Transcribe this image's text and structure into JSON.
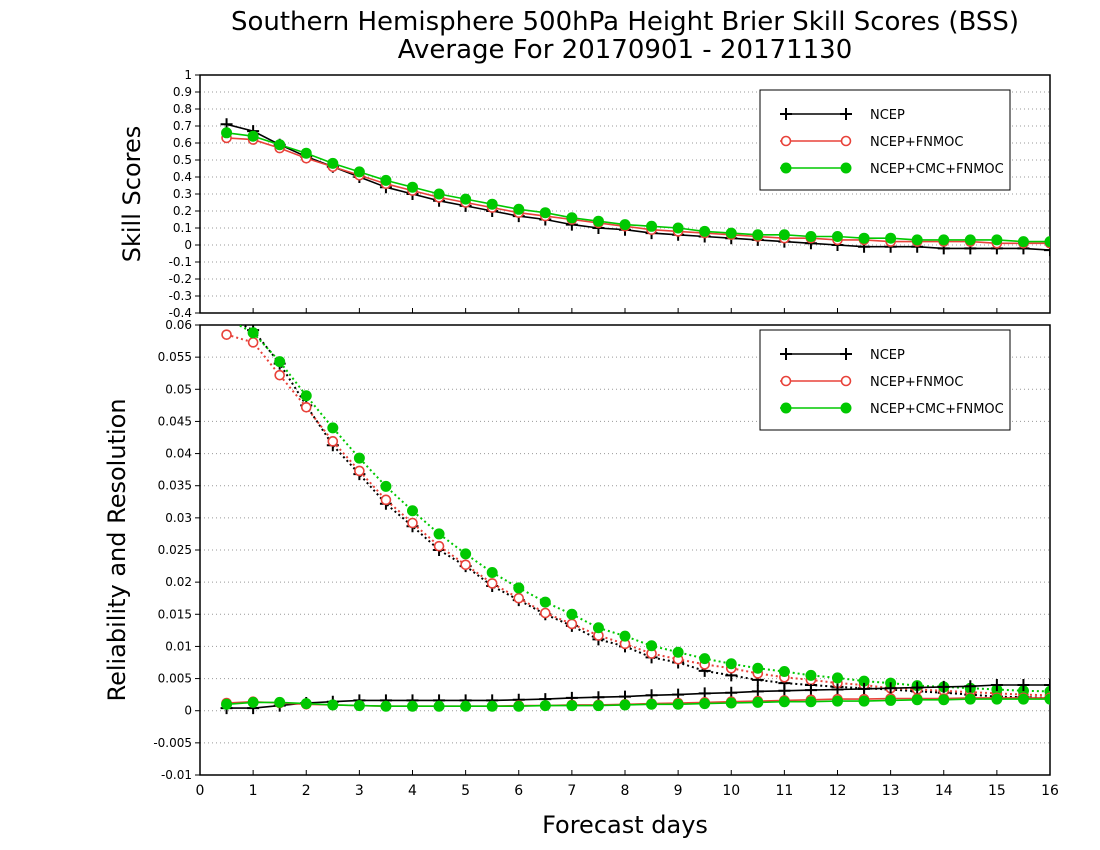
{
  "title_line1": "Southern Hemisphere 500hPa Height Brier Skill Scores (BSS)",
  "title_line2": "Average For 20170901 - 20171130",
  "xlabel": "Forecast days",
  "colors": {
    "NCEP": "#000000",
    "NCEP+FNMOC": "#e8423a",
    "NCEP+CMC+FNMOC": "#00c800"
  },
  "chart_data": [
    {
      "type": "line",
      "ylabel": "Skill Scores",
      "xlim": [
        0,
        16
      ],
      "ylim": [
        -0.4,
        1
      ],
      "xticks": [
        0,
        1,
        2,
        3,
        4,
        5,
        6,
        7,
        8,
        9,
        10,
        11,
        12,
        13,
        14,
        15,
        16
      ],
      "yticks": [
        "-0.4",
        "-0.3",
        "-0.2",
        "-0.1",
        "0",
        "0.1",
        "0.2",
        "0.3",
        "0.4",
        "0.5",
        "0.6",
        "0.7",
        "0.8",
        "0.9",
        "1"
      ],
      "grid": true,
      "legend_position": "top-right",
      "legend": [
        "NCEP",
        "NCEP+FNMOC",
        "NCEP+CMC+FNMOC"
      ],
      "x": [
        0.5,
        1,
        1.5,
        2,
        2.5,
        3,
        3.5,
        4,
        4.5,
        5,
        5.5,
        6,
        6.5,
        7,
        7.5,
        8,
        8.5,
        9,
        9.5,
        10,
        10.5,
        11,
        11.5,
        12,
        12.5,
        13,
        13.5,
        14,
        14.5,
        15,
        15.5,
        16
      ],
      "series": [
        {
          "name": "NCEP",
          "style": "solid",
          "marker": "plus",
          "values": [
            0.71,
            0.67,
            0.59,
            0.52,
            0.46,
            0.4,
            0.34,
            0.3,
            0.26,
            0.23,
            0.2,
            0.17,
            0.15,
            0.12,
            0.1,
            0.09,
            0.07,
            0.06,
            0.05,
            0.04,
            0.03,
            0.02,
            0.01,
            0.0,
            -0.01,
            -0.01,
            -0.01,
            -0.02,
            -0.02,
            -0.02,
            -0.02,
            -0.03
          ]
        },
        {
          "name": "NCEP+FNMOC",
          "style": "solid",
          "marker": "open-circle",
          "values": [
            0.63,
            0.62,
            0.57,
            0.51,
            0.46,
            0.41,
            0.36,
            0.32,
            0.28,
            0.25,
            0.22,
            0.19,
            0.17,
            0.15,
            0.13,
            0.11,
            0.09,
            0.08,
            0.07,
            0.06,
            0.05,
            0.04,
            0.04,
            0.03,
            0.03,
            0.02,
            0.02,
            0.02,
            0.02,
            0.01,
            0.01,
            0.01
          ]
        },
        {
          "name": "NCEP+CMC+FNMOC",
          "style": "solid",
          "marker": "filled-circle",
          "values": [
            0.66,
            0.64,
            0.59,
            0.54,
            0.48,
            0.43,
            0.38,
            0.34,
            0.3,
            0.27,
            0.24,
            0.21,
            0.19,
            0.16,
            0.14,
            0.12,
            0.11,
            0.1,
            0.08,
            0.07,
            0.06,
            0.06,
            0.05,
            0.05,
            0.04,
            0.04,
            0.03,
            0.03,
            0.03,
            0.03,
            0.02,
            0.02
          ]
        }
      ]
    },
    {
      "type": "line",
      "ylabel": "Reliability and Resolution",
      "xlim": [
        0,
        16
      ],
      "ylim": [
        -0.01,
        0.06
      ],
      "xticks": [
        0,
        1,
        2,
        3,
        4,
        5,
        6,
        7,
        8,
        9,
        10,
        11,
        12,
        13,
        14,
        15,
        16
      ],
      "yticks": [
        "-0.01",
        "-0.005",
        "0",
        "0.005",
        "0.01",
        "0.015",
        "0.02",
        "0.025",
        "0.03",
        "0.035",
        "0.04",
        "0.045",
        "0.05",
        "0.055",
        "0.06"
      ],
      "grid": true,
      "legend_position": "top-right",
      "legend": [
        "NCEP",
        "NCEP+FNMOC",
        "NCEP+CMC+FNMOC"
      ],
      "x": [
        0.5,
        1,
        1.5,
        2,
        2.5,
        3,
        3.5,
        4,
        4.5,
        5,
        5.5,
        6,
        6.5,
        7,
        7.5,
        8,
        8.5,
        9,
        9.5,
        10,
        10.5,
        11,
        11.5,
        12,
        12.5,
        13,
        13.5,
        14,
        14.5,
        15,
        15.5,
        16
      ],
      "series": [
        {
          "name": "NCEP",
          "group": "resolution",
          "style": "dotted",
          "marker": "plus",
          "values": [
            0.0612,
            0.0592,
            0.054,
            0.0475,
            0.0413,
            0.0368,
            0.0322,
            0.0287,
            0.025,
            0.0225,
            0.0194,
            0.0172,
            0.015,
            0.0132,
            0.0111,
            0.01,
            0.0083,
            0.0075,
            0.0062,
            0.0055,
            0.0048,
            0.0043,
            0.004,
            0.0037,
            0.0035,
            0.0033,
            0.003,
            0.0028,
            0.0025,
            0.0022,
            0.0021,
            0.002
          ]
        },
        {
          "name": "NCEP+FNMOC",
          "group": "resolution",
          "style": "dotted",
          "marker": "open-circle",
          "values": [
            0.0585,
            0.0573,
            0.0522,
            0.0472,
            0.0419,
            0.0373,
            0.0328,
            0.0292,
            0.0256,
            0.0227,
            0.0198,
            0.0175,
            0.0152,
            0.0135,
            0.0117,
            0.0104,
            0.0089,
            0.008,
            0.0072,
            0.0066,
            0.0058,
            0.0052,
            0.0048,
            0.0043,
            0.004,
            0.0035,
            0.0033,
            0.0031,
            0.0029,
            0.0027,
            0.0025,
            0.0024
          ]
        },
        {
          "name": "NCEP+CMC+FNMOC",
          "group": "resolution",
          "style": "dotted",
          "marker": "filled-circle",
          "values": [
            0.061,
            0.0588,
            0.0543,
            0.049,
            0.044,
            0.0393,
            0.0349,
            0.0311,
            0.0275,
            0.0244,
            0.0215,
            0.0191,
            0.0169,
            0.015,
            0.0129,
            0.0116,
            0.0101,
            0.0091,
            0.0081,
            0.0073,
            0.0066,
            0.0061,
            0.0055,
            0.0051,
            0.0046,
            0.0043,
            0.0039,
            0.0037,
            0.0035,
            0.0033,
            0.0031,
            0.003
          ]
        },
        {
          "name": "NCEP",
          "group": "reliability",
          "style": "solid",
          "marker": "plus",
          "values": [
            0.0004,
            0.0004,
            0.0008,
            0.0012,
            0.0014,
            0.0016,
            0.0016,
            0.0016,
            0.0016,
            0.0016,
            0.0016,
            0.0017,
            0.0018,
            0.002,
            0.0021,
            0.0022,
            0.0024,
            0.0025,
            0.0027,
            0.0028,
            0.003,
            0.0031,
            0.0032,
            0.0033,
            0.0034,
            0.0035,
            0.0036,
            0.0037,
            0.0038,
            0.004,
            0.004,
            0.004
          ]
        },
        {
          "name": "NCEP+FNMOC",
          "group": "reliability",
          "style": "solid",
          "marker": "open-circle",
          "values": [
            0.0012,
            0.0014,
            0.0012,
            0.001,
            0.0009,
            0.0008,
            0.0007,
            0.0007,
            0.0007,
            0.0007,
            0.0007,
            0.0008,
            0.0008,
            0.0009,
            0.0009,
            0.001,
            0.0011,
            0.0012,
            0.0013,
            0.0014,
            0.0015,
            0.0016,
            0.0017,
            0.0018,
            0.0018,
            0.0019,
            0.0019,
            0.0019,
            0.002,
            0.002,
            0.002,
            0.002
          ]
        },
        {
          "name": "NCEP+CMC+FNMOC",
          "group": "reliability",
          "style": "solid",
          "marker": "filled-circle",
          "values": [
            0.001,
            0.0013,
            0.0013,
            0.0011,
            0.0009,
            0.0008,
            0.0007,
            0.0007,
            0.0007,
            0.0007,
            0.0007,
            0.0007,
            0.0008,
            0.0008,
            0.0008,
            0.0009,
            0.001,
            0.001,
            0.0011,
            0.0012,
            0.0013,
            0.0014,
            0.0014,
            0.0015,
            0.0015,
            0.0016,
            0.0017,
            0.0017,
            0.0018,
            0.0018,
            0.0018,
            0.0018
          ]
        }
      ]
    }
  ]
}
